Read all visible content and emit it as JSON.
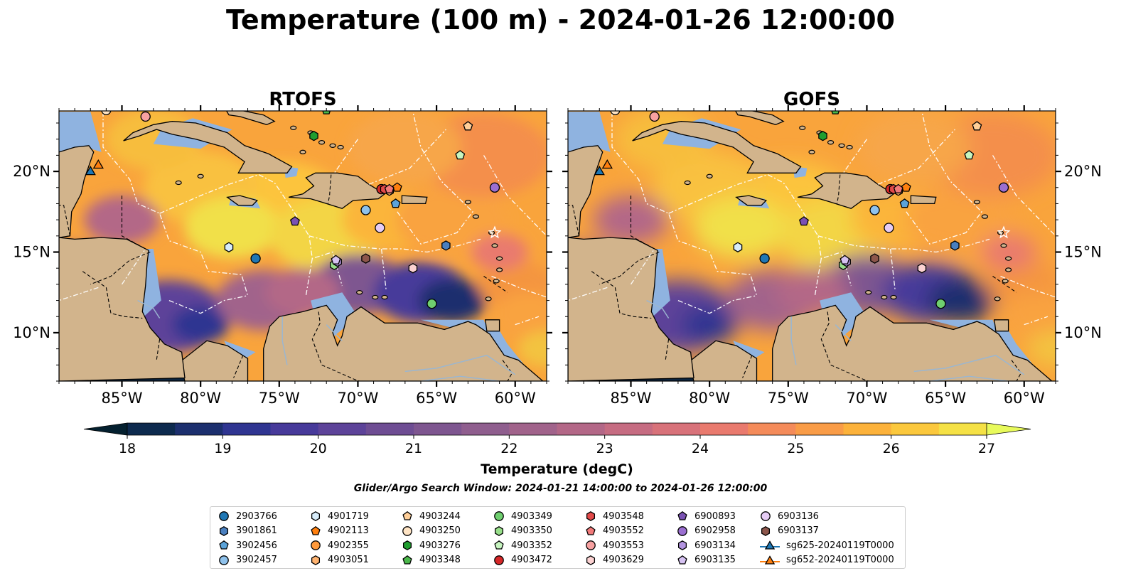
{
  "figure": {
    "title": "Temperature (100 m) - 2024-01-26 12:00:00",
    "search_window": "Glider/Argo Search Window: 2024-01-21 14:00:00 to 2024-01-26 12:00:00"
  },
  "colors": {
    "land": "#d2b48c",
    "shelf_water": "#8fb3e0",
    "cmap": [
      "#04202f",
      "#0d2a4e",
      "#1c2f6e",
      "#2f3591",
      "#473a9a",
      "#5d4399",
      "#6e4d93",
      "#7e5690",
      "#8f5e8e",
      "#a1638b",
      "#b36787",
      "#c66c82",
      "#d8727a",
      "#e97a6e",
      "#f48b5a",
      "#f99c47",
      "#fcb23b",
      "#fbc83d",
      "#f5e145",
      "#e8fa5b"
    ]
  },
  "colorbar": {
    "label": "Temperature (degC)",
    "ticks": [
      "18",
      "19",
      "20",
      "21",
      "22",
      "23",
      "24",
      "25",
      "26",
      "27"
    ],
    "vmin": 18,
    "vmax": 27,
    "step": 0.5
  },
  "chart_data": {
    "type": "map",
    "panels": [
      {
        "title": "RTOFS"
      },
      {
        "title": "GOFS"
      }
    ],
    "xlim": [
      -89.0,
      -58.0
    ],
    "ylim": [
      7.0,
      23.75
    ],
    "xticks": [
      -85,
      -80,
      -75,
      -70,
      -65,
      -60
    ],
    "xtick_labels": [
      "85°W",
      "80°W",
      "75°W",
      "70°W",
      "65°W",
      "60°W"
    ],
    "yticks": [
      10,
      15,
      20
    ],
    "ytick_labels": [
      "10°N",
      "15°N",
      "20°N"
    ],
    "floats": [
      {
        "id": "2903766",
        "marker": "circle",
        "color": "#1f77b4",
        "lon": -76.5,
        "lat": 14.6
      },
      {
        "id": "3901861",
        "marker": "hexagon",
        "color": "#4a7fbf",
        "lon": -64.4,
        "lat": 15.4
      },
      {
        "id": "3902456",
        "marker": "pentagon",
        "color": "#5ba3d9",
        "lon": -67.6,
        "lat": 18.0
      },
      {
        "id": "3902457",
        "marker": "circle",
        "color": "#8fc2ec",
        "lon": -69.5,
        "lat": 17.6
      },
      {
        "id": "4901719",
        "marker": "hexagon",
        "color": "#d7ecfa",
        "lon": -78.2,
        "lat": 15.3
      },
      {
        "id": "4902113",
        "marker": "pentagon",
        "color": "#ff7f0e",
        "lon": -67.5,
        "lat": 19.0
      },
      {
        "id": "4902355",
        "marker": "circle",
        "color": "#ff9a3c",
        "lon": -68.5,
        "lat": 18.9
      },
      {
        "id": "4903051",
        "marker": "hexagon",
        "color": "#ffb370",
        "lon": -68.0,
        "lat": 18.8
      },
      {
        "id": "4903244",
        "marker": "pentagon",
        "color": "#ffcf99",
        "lon": -63.0,
        "lat": 22.8
      },
      {
        "id": "4903250",
        "marker": "circle",
        "color": "#ffe4c4",
        "lon": -86.0,
        "lat": 23.8
      },
      {
        "id": "4903276",
        "marker": "hexagon",
        "color": "#1f9e2f",
        "lon": -72.8,
        "lat": 22.2
      },
      {
        "id": "4903348",
        "marker": "pentagon",
        "color": "#4bb84b",
        "lon": -72.0,
        "lat": 23.8
      },
      {
        "id": "4903349",
        "marker": "circle",
        "color": "#6fcf6f",
        "lon": -65.3,
        "lat": 11.8
      },
      {
        "id": "4903350",
        "marker": "hexagon",
        "color": "#98df8a",
        "lon": -71.5,
        "lat": 14.2
      },
      {
        "id": "4903352",
        "marker": "pentagon",
        "color": "#c7f5c0",
        "lon": -63.5,
        "lat": 21.0
      },
      {
        "id": "4903472",
        "marker": "circle",
        "color": "#d62728",
        "lon": -68.5,
        "lat": 18.9
      },
      {
        "id": "4903548",
        "marker": "hexagon",
        "color": "#e34a4a",
        "lon": -68.3,
        "lat": 18.9
      },
      {
        "id": "4903552",
        "marker": "pentagon",
        "color": "#f27a7a",
        "lon": -68.0,
        "lat": 18.9
      },
      {
        "id": "4903553",
        "marker": "circle",
        "color": "#f7a1a1",
        "lon": -83.5,
        "lat": 23.4
      },
      {
        "id": "4903629",
        "marker": "hexagon",
        "color": "#fcd2d2",
        "lon": -66.5,
        "lat": 14.0
      },
      {
        "id": "6900893",
        "marker": "pentagon",
        "color": "#7a52b3",
        "lon": -74.0,
        "lat": 16.9
      },
      {
        "id": "6902958",
        "marker": "circle",
        "color": "#9b6fd1",
        "lon": -61.3,
        "lat": 19.0
      },
      {
        "id": "6903134",
        "marker": "hexagon",
        "color": "#b394e0",
        "lon": -71.3,
        "lat": 14.4
      },
      {
        "id": "6903135",
        "marker": "pentagon",
        "color": "#d6c2f2",
        "lon": -71.4,
        "lat": 14.5
      },
      {
        "id": "6903136",
        "marker": "circle",
        "color": "#e6ccf5",
        "lon": -68.6,
        "lat": 16.5
      },
      {
        "id": "6903137",
        "marker": "hexagon",
        "color": "#8c564b",
        "lon": -69.5,
        "lat": 14.6
      }
    ],
    "gliders": [
      {
        "id": "sg625-20240119T0000",
        "marker": "triangle",
        "color": "#1f77b4",
        "line": "#1f77b4",
        "lon": -87.0,
        "lat": 19.9
      },
      {
        "id": "sg652-20240119T0000",
        "marker": "triangle",
        "color": "#ff7f0e",
        "line": "#ff7f0e",
        "lon": -86.5,
        "lat": 20.3
      }
    ]
  },
  "legend": {
    "columns": [
      [
        {
          "label": "2903766",
          "marker": "circle",
          "color": "#1f77b4"
        },
        {
          "label": "3901861",
          "marker": "hexagon",
          "color": "#4a7fbf"
        },
        {
          "label": "3902456",
          "marker": "pentagon",
          "color": "#5ba3d9"
        },
        {
          "label": "3902457",
          "marker": "circle",
          "color": "#8fc2ec"
        }
      ],
      [
        {
          "label": "4901719",
          "marker": "hexagon",
          "color": "#d7ecfa"
        },
        {
          "label": "4902113",
          "marker": "pentagon",
          "color": "#ff7f0e"
        },
        {
          "label": "4902355",
          "marker": "circle",
          "color": "#ff9a3c"
        },
        {
          "label": "4903051",
          "marker": "hexagon",
          "color": "#ffb370"
        }
      ],
      [
        {
          "label": "4903244",
          "marker": "pentagon",
          "color": "#ffcf99"
        },
        {
          "label": "4903250",
          "marker": "circle",
          "color": "#ffe4c4"
        },
        {
          "label": "4903276",
          "marker": "hexagon",
          "color": "#1f9e2f"
        },
        {
          "label": "4903348",
          "marker": "pentagon",
          "color": "#4bb84b"
        }
      ],
      [
        {
          "label": "4903349",
          "marker": "circle",
          "color": "#6fcf6f"
        },
        {
          "label": "4903350",
          "marker": "hexagon",
          "color": "#98df8a"
        },
        {
          "label": "4903352",
          "marker": "pentagon",
          "color": "#c7f5c0"
        },
        {
          "label": "4903472",
          "marker": "circle",
          "color": "#d62728"
        }
      ],
      [
        {
          "label": "4903548",
          "marker": "hexagon",
          "color": "#e34a4a"
        },
        {
          "label": "4903552",
          "marker": "pentagon",
          "color": "#f27a7a"
        },
        {
          "label": "4903553",
          "marker": "circle",
          "color": "#f7a1a1"
        },
        {
          "label": "4903629",
          "marker": "hexagon",
          "color": "#fcd2d2"
        }
      ],
      [
        {
          "label": "6900893",
          "marker": "pentagon",
          "color": "#7a52b3"
        },
        {
          "label": "6902958",
          "marker": "circle",
          "color": "#9b6fd1"
        },
        {
          "label": "6903134",
          "marker": "hexagon",
          "color": "#b394e0"
        },
        {
          "label": "6903135",
          "marker": "pentagon",
          "color": "#d6c2f2"
        }
      ],
      [
        {
          "label": "6903136",
          "marker": "circle",
          "color": "#e6ccf5"
        },
        {
          "label": "6903137",
          "marker": "hexagon",
          "color": "#8c564b"
        },
        {
          "label": "sg625-20240119T0000",
          "marker": "triangle-line",
          "color": "#1f77b4"
        },
        {
          "label": "sg652-20240119T0000",
          "marker": "triangle-line",
          "color": "#ff7f0e"
        }
      ]
    ]
  }
}
